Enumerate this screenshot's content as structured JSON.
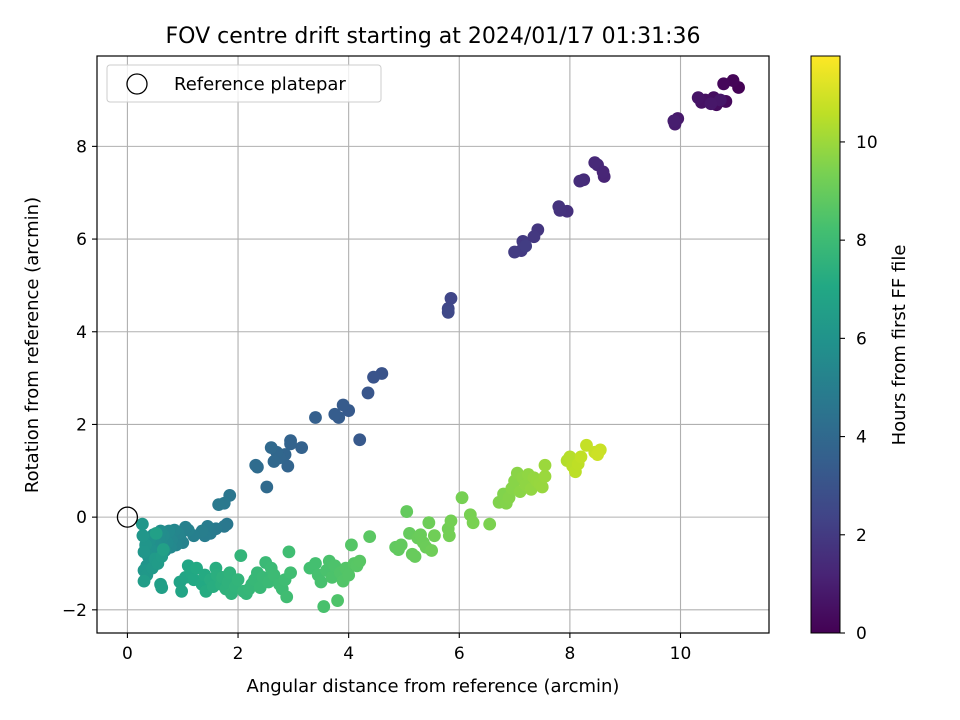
{
  "chart_data": {
    "type": "scatter",
    "title": "FOV centre drift starting at 2024/01/17 01:31:36",
    "xlabel": "Angular distance from reference (arcmin)",
    "ylabel": "Rotation from reference (arcmin)",
    "xlim": [
      -0.55,
      11.6
    ],
    "ylim": [
      -2.5,
      9.95
    ],
    "xticks": [
      0,
      2,
      4,
      6,
      8,
      10
    ],
    "yticks": [
      -2,
      0,
      2,
      4,
      6,
      8
    ],
    "xtick_labels": [
      "0",
      "2",
      "4",
      "6",
      "8",
      "10"
    ],
    "ytick_labels": [
      "−2",
      "0",
      "2",
      "4",
      "6",
      "8"
    ],
    "grid": true,
    "legend": {
      "placement": "top-left",
      "entries": [
        "Reference platepar"
      ]
    },
    "reference_point": {
      "x": 0,
      "y": 0
    },
    "colorbar": {
      "label": "Hours from first FF file",
      "range": [
        0,
        11.75
      ],
      "ticks": [
        0,
        2,
        4,
        6,
        8,
        10
      ],
      "tick_labels": [
        "0",
        "2",
        "4",
        "6",
        "8",
        "10"
      ],
      "colormap": "viridis"
    },
    "series": [
      {
        "columns": [
          "x",
          "y",
          "hours"
        ],
        "points": [
          [
            11.05,
            9.27,
            0.05
          ],
          [
            10.95,
            9.42,
            0.12
          ],
          [
            10.78,
            9.35,
            0.2
          ],
          [
            10.82,
            8.97,
            0.28
          ],
          [
            10.65,
            8.9,
            0.35
          ],
          [
            10.6,
            9.05,
            0.42
          ],
          [
            10.45,
            9.0,
            0.5
          ],
          [
            10.38,
            8.95,
            0.57
          ],
          [
            10.32,
            9.05,
            0.64
          ],
          [
            10.72,
            9.0,
            0.7
          ],
          [
            10.55,
            8.92,
            0.75
          ],
          [
            9.95,
            8.6,
            0.82
          ],
          [
            9.9,
            8.48,
            0.9
          ],
          [
            9.88,
            8.55,
            0.97
          ],
          [
            8.62,
            7.35,
            1.2
          ],
          [
            8.6,
            7.45,
            1.25
          ],
          [
            8.5,
            7.6,
            1.3
          ],
          [
            8.45,
            7.65,
            1.35
          ],
          [
            8.25,
            7.28,
            1.45
          ],
          [
            8.18,
            7.25,
            1.5
          ],
          [
            7.95,
            6.6,
            1.62
          ],
          [
            7.82,
            6.62,
            1.68
          ],
          [
            7.8,
            6.7,
            1.72
          ],
          [
            7.42,
            6.2,
            1.85
          ],
          [
            7.35,
            6.05,
            1.9
          ],
          [
            7.15,
            5.95,
            1.95
          ],
          [
            7.12,
            5.75,
            2.0
          ],
          [
            7.0,
            5.72,
            2.05
          ],
          [
            7.2,
            5.85,
            2.1
          ],
          [
            5.85,
            4.72,
            2.45
          ],
          [
            5.8,
            4.5,
            2.5
          ],
          [
            5.8,
            4.42,
            2.55
          ],
          [
            4.6,
            3.1,
            3.0
          ],
          [
            4.45,
            3.02,
            3.05
          ],
          [
            4.35,
            2.68,
            3.15
          ],
          [
            4.2,
            1.67,
            3.25
          ],
          [
            4.0,
            2.3,
            3.3
          ],
          [
            3.9,
            2.42,
            3.35
          ],
          [
            3.82,
            2.15,
            3.4
          ],
          [
            3.75,
            2.22,
            3.45
          ],
          [
            3.4,
            2.15,
            3.55
          ],
          [
            3.15,
            1.5,
            3.65
          ],
          [
            2.95,
            1.65,
            3.7
          ],
          [
            2.95,
            1.58,
            3.72
          ],
          [
            2.9,
            1.1,
            3.78
          ],
          [
            2.85,
            1.35,
            3.82
          ],
          [
            2.75,
            1.28,
            3.86
          ],
          [
            2.7,
            1.4,
            3.9
          ],
          [
            2.65,
            1.2,
            3.95
          ],
          [
            2.6,
            1.5,
            4.0
          ],
          [
            2.52,
            0.65,
            4.05
          ],
          [
            2.35,
            1.08,
            4.1
          ],
          [
            2.32,
            1.12,
            4.15
          ],
          [
            1.85,
            0.47,
            4.6
          ],
          [
            1.8,
            -0.15,
            4.65
          ],
          [
            1.75,
            -0.2,
            4.7
          ],
          [
            1.75,
            0.3,
            4.72
          ],
          [
            1.65,
            0.27,
            4.76
          ],
          [
            1.6,
            -0.25,
            4.8
          ],
          [
            1.5,
            -0.35,
            4.85
          ],
          [
            1.45,
            -0.2,
            4.9
          ],
          [
            1.4,
            -0.4,
            4.95
          ],
          [
            1.35,
            -0.3,
            5.0
          ],
          [
            1.2,
            -0.4,
            5.05
          ],
          [
            1.1,
            -0.28,
            5.1
          ],
          [
            1.05,
            -0.22,
            5.12
          ],
          [
            1.0,
            -0.55,
            5.15
          ],
          [
            0.95,
            -0.45,
            5.2
          ],
          [
            0.92,
            -0.35,
            5.25
          ],
          [
            0.88,
            -0.6,
            5.3
          ],
          [
            0.85,
            -0.28,
            5.35
          ],
          [
            0.8,
            -0.5,
            5.4
          ],
          [
            0.78,
            -0.65,
            5.45
          ],
          [
            0.75,
            -0.3,
            5.5
          ],
          [
            0.72,
            -0.55,
            5.55
          ],
          [
            0.68,
            -0.72,
            5.6
          ],
          [
            0.65,
            -0.4,
            5.62
          ],
          [
            0.62,
            -0.6,
            5.65
          ],
          [
            0.6,
            -0.3,
            5.68
          ],
          [
            0.57,
            -0.45,
            5.7
          ],
          [
            0.55,
            -0.8,
            5.75
          ],
          [
            0.5,
            -0.55,
            5.8
          ],
          [
            0.47,
            -0.38,
            5.85
          ],
          [
            0.45,
            -0.95,
            5.9
          ],
          [
            0.42,
            -0.7,
            5.92
          ],
          [
            0.4,
            -0.5,
            5.95
          ],
          [
            0.38,
            -0.85,
            6.0
          ],
          [
            0.35,
            -1.05,
            6.05
          ],
          [
            0.33,
            -0.6,
            6.1
          ],
          [
            0.3,
            -0.75,
            6.12
          ],
          [
            0.28,
            -0.4,
            6.15
          ],
          [
            0.27,
            -0.15,
            6.18
          ],
          [
            0.3,
            -1.15,
            6.2
          ],
          [
            0.35,
            -1.25,
            6.25
          ],
          [
            0.45,
            -1.1,
            6.3
          ],
          [
            0.5,
            -0.9,
            6.35
          ],
          [
            0.55,
            -1.0,
            6.4
          ],
          [
            0.62,
            -0.85,
            6.45
          ],
          [
            0.3,
            -1.38,
            6.5
          ],
          [
            0.6,
            -1.45,
            6.55
          ],
          [
            0.62,
            -1.52,
            6.6
          ],
          [
            0.52,
            -0.35,
            6.62
          ],
          [
            0.65,
            -0.7,
            6.65
          ],
          [
            0.95,
            -1.4,
            6.8
          ],
          [
            0.98,
            -1.6,
            6.85
          ],
          [
            1.05,
            -1.3,
            6.9
          ],
          [
            1.1,
            -1.05,
            6.95
          ],
          [
            1.15,
            -1.2,
            7.0
          ],
          [
            1.2,
            -1.35,
            7.05
          ],
          [
            1.25,
            -1.1,
            7.08
          ],
          [
            1.35,
            -1.45,
            7.1
          ],
          [
            1.4,
            -1.25,
            7.15
          ],
          [
            1.42,
            -1.6,
            7.2
          ],
          [
            1.5,
            -1.35,
            7.25
          ],
          [
            1.55,
            -1.5,
            7.28
          ],
          [
            1.6,
            -1.1,
            7.3
          ],
          [
            1.62,
            -1.25,
            7.35
          ],
          [
            1.7,
            -1.45,
            7.4
          ],
          [
            1.72,
            -1.3,
            7.45
          ],
          [
            1.78,
            -1.55,
            7.5
          ],
          [
            1.82,
            -1.4,
            7.52
          ],
          [
            1.85,
            -1.2,
            7.55
          ],
          [
            1.88,
            -1.65,
            7.58
          ],
          [
            1.95,
            -1.5,
            7.6
          ],
          [
            2.0,
            -1.35,
            7.65
          ],
          [
            2.05,
            -0.83,
            7.68
          ],
          [
            2.1,
            -1.6,
            7.7
          ],
          [
            2.15,
            -1.65,
            7.72
          ],
          [
            2.2,
            -1.55,
            7.75
          ],
          [
            2.25,
            -1.45,
            7.78
          ],
          [
            2.3,
            -1.35,
            7.8
          ],
          [
            2.35,
            -1.2,
            7.82
          ],
          [
            2.4,
            -1.52,
            7.85
          ],
          [
            2.45,
            -1.3,
            7.88
          ],
          [
            2.5,
            -0.98,
            7.9
          ],
          [
            2.55,
            -1.4,
            7.92
          ],
          [
            2.6,
            -1.1,
            7.95
          ],
          [
            2.65,
            -1.25,
            7.98
          ],
          [
            2.75,
            -1.45,
            8.0
          ],
          [
            2.8,
            -1.55,
            8.02
          ],
          [
            2.85,
            -1.35,
            8.05
          ],
          [
            2.88,
            -1.72,
            8.08
          ],
          [
            2.92,
            -0.75,
            8.1
          ],
          [
            2.95,
            -1.2,
            8.12
          ],
          [
            3.3,
            -1.1,
            8.2
          ],
          [
            3.4,
            -1.0,
            8.23
          ],
          [
            3.45,
            -1.25,
            8.26
          ],
          [
            3.5,
            -1.4,
            8.29
          ],
          [
            3.55,
            -1.93,
            8.32
          ],
          [
            3.6,
            -1.15,
            8.35
          ],
          [
            3.65,
            -0.95,
            8.38
          ],
          [
            3.7,
            -1.3,
            8.4
          ],
          [
            3.75,
            -1.05,
            8.43
          ],
          [
            3.8,
            -1.8,
            8.46
          ],
          [
            3.85,
            -1.2,
            8.49
          ],
          [
            3.9,
            -1.38,
            8.52
          ],
          [
            3.95,
            -1.1,
            8.55
          ],
          [
            4.0,
            -1.25,
            8.58
          ],
          [
            4.05,
            -0.6,
            8.6
          ],
          [
            4.1,
            -1.0,
            8.63
          ],
          [
            4.15,
            -1.05,
            8.66
          ],
          [
            4.2,
            -0.95,
            8.68
          ],
          [
            4.38,
            -0.42,
            8.72
          ],
          [
            4.85,
            -0.65,
            8.85
          ],
          [
            4.9,
            -0.7,
            8.88
          ],
          [
            4.95,
            -0.6,
            8.9
          ],
          [
            5.05,
            0.12,
            8.93
          ],
          [
            5.1,
            -0.35,
            8.96
          ],
          [
            5.15,
            -0.8,
            8.98
          ],
          [
            5.2,
            -0.85,
            9.0
          ],
          [
            5.25,
            -0.45,
            9.02
          ],
          [
            5.3,
            -0.38,
            9.05
          ],
          [
            5.35,
            -0.55,
            9.08
          ],
          [
            5.4,
            -0.65,
            9.1
          ],
          [
            5.45,
            -0.12,
            9.12
          ],
          [
            5.5,
            -0.72,
            9.15
          ],
          [
            5.55,
            -0.4,
            9.18
          ],
          [
            5.8,
            -0.25,
            9.22
          ],
          [
            5.82,
            -0.4,
            9.25
          ],
          [
            5.85,
            -0.08,
            9.28
          ],
          [
            6.05,
            0.42,
            9.32
          ],
          [
            6.2,
            0.05,
            9.35
          ],
          [
            6.25,
            -0.12,
            9.38
          ],
          [
            6.55,
            -0.15,
            9.42
          ],
          [
            6.72,
            0.32,
            9.5
          ],
          [
            6.8,
            0.5,
            9.53
          ],
          [
            6.85,
            0.3,
            9.56
          ],
          [
            6.9,
            0.42,
            9.59
          ],
          [
            6.95,
            0.62,
            9.62
          ],
          [
            7.0,
            0.78,
            9.65
          ],
          [
            7.05,
            0.95,
            9.68
          ],
          [
            7.1,
            0.55,
            9.7
          ],
          [
            7.15,
            0.85,
            9.73
          ],
          [
            7.2,
            0.7,
            9.76
          ],
          [
            7.25,
            0.92,
            9.79
          ],
          [
            7.3,
            0.6,
            9.82
          ],
          [
            7.35,
            0.85,
            9.85
          ],
          [
            7.4,
            0.78,
            9.88
          ],
          [
            7.45,
            0.72,
            9.9
          ],
          [
            7.5,
            0.65,
            9.93
          ],
          [
            7.55,
            0.88,
            9.96
          ],
          [
            7.55,
            1.12,
            9.98
          ],
          [
            7.95,
            1.22,
            10.4
          ],
          [
            8.0,
            1.3,
            10.45
          ],
          [
            8.05,
            1.1,
            10.5
          ],
          [
            8.1,
            0.98,
            10.55
          ],
          [
            8.15,
            1.15,
            10.6
          ],
          [
            8.2,
            1.3,
            10.65
          ],
          [
            8.3,
            1.55,
            10.7
          ],
          [
            8.45,
            1.4,
            10.75
          ],
          [
            8.55,
            1.45,
            10.8
          ],
          [
            8.5,
            1.35,
            10.85
          ]
        ]
      }
    ]
  }
}
